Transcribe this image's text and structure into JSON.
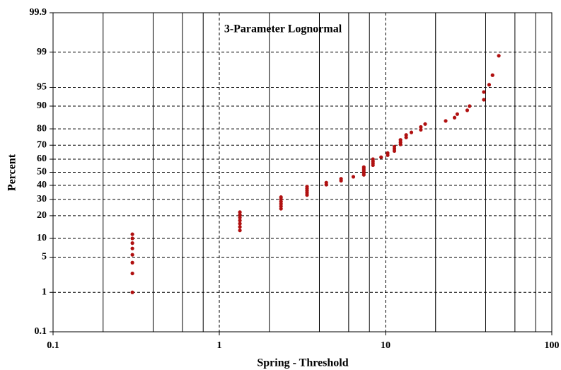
{
  "chart_data": {
    "type": "scatter",
    "title": "3-Parameter Lognormal",
    "x_label": "Spring - Threshold",
    "y_label": "Percent",
    "xscale": "log",
    "yscale": "probability",
    "xlim": [
      0.1,
      100
    ],
    "xticks": [
      0.1,
      1,
      10,
      100
    ],
    "x_minor_grid": [
      0.2,
      0.4,
      0.6,
      0.8,
      2,
      4,
      6,
      8,
      20,
      40,
      60,
      80
    ],
    "ylim": [
      0.1,
      99.9
    ],
    "yticks": [
      0.1,
      1,
      5,
      10,
      20,
      30,
      40,
      50,
      60,
      70,
      80,
      90,
      95,
      99,
      99.9
    ],
    "grid": true,
    "series": [
      {
        "color": "#b01010",
        "x": [
          0.3,
          0.3,
          0.3,
          0.3,
          0.3,
          0.3,
          0.3,
          0.3,
          1.33,
          1.33,
          1.33,
          1.33,
          1.33,
          1.33,
          1.33,
          2.35,
          2.35,
          2.35,
          2.35,
          2.35,
          2.35,
          3.37,
          3.37,
          3.37,
          3.37,
          3.37,
          4.4,
          4.4,
          5.4,
          5.4,
          6.4,
          7.4,
          7.4,
          7.4,
          7.4,
          7.4,
          8.4,
          8.4,
          8.4,
          8.4,
          9.4,
          10.3,
          10.3,
          11.3,
          11.3,
          11.3,
          12.3,
          12.3,
          12.3,
          13.3,
          13.3,
          14.3,
          16.3,
          16.3,
          17.3,
          23,
          26,
          27,
          31,
          32,
          39,
          39,
          42,
          44,
          48
        ],
        "values": [
          1,
          2.5,
          4,
          5.5,
          7,
          8.5,
          10,
          11.5,
          13,
          14.5,
          16,
          17.5,
          19,
          20.5,
          22,
          24,
          25.5,
          27,
          28.5,
          30,
          31.5,
          33,
          34.5,
          36,
          37.5,
          39,
          40.5,
          42,
          43.5,
          45,
          46.5,
          48,
          49.5,
          51,
          52.5,
          54,
          55.5,
          57,
          58.5,
          60,
          61.5,
          63,
          64.5,
          66,
          67.5,
          69,
          70.5,
          72,
          73.5,
          75,
          76.5,
          78,
          79.5,
          81,
          82.5,
          84,
          85.5,
          87,
          88.5,
          90,
          92,
          94,
          95.5,
          97,
          98.8
        ]
      }
    ]
  }
}
